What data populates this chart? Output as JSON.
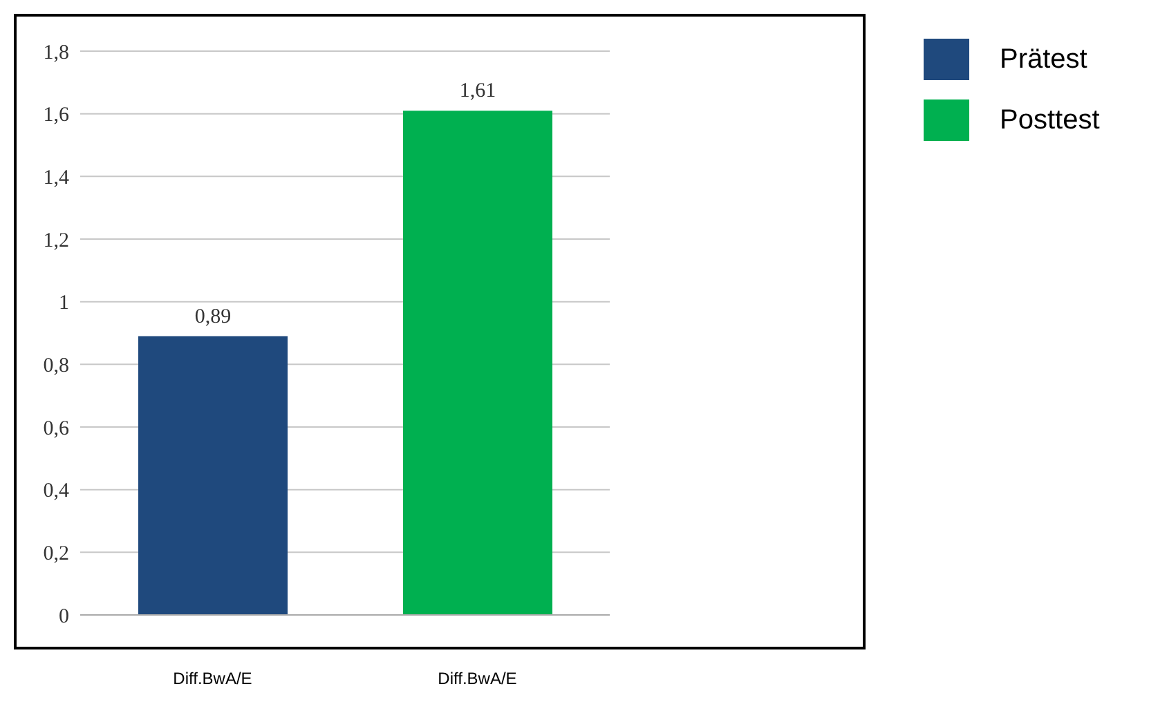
{
  "chart_data": {
    "type": "bar",
    "categories": [
      "Diff.BwA/E",
      "Diff.BwA/E"
    ],
    "series": [
      {
        "name": "Prätest",
        "color": "#1f497d",
        "values": [
          0.89,
          null
        ],
        "value_labels": [
          "0,89",
          null
        ]
      },
      {
        "name": "Posttest",
        "color": "#00b050",
        "values": [
          null,
          1.61
        ],
        "value_labels": [
          null,
          "1,61"
        ]
      }
    ],
    "ylim": [
      0,
      1.8
    ],
    "yticks": [
      0,
      {
        "value": 0.2,
        "label": "0,2"
      },
      {
        "value": 0.4,
        "label": "0,4"
      },
      {
        "value": 0.6,
        "label": "0,6"
      },
      {
        "value": 0.8,
        "label": "0,8"
      },
      1,
      {
        "value": 1.2,
        "label": "1,2"
      },
      {
        "value": 1.4,
        "label": "1,4"
      },
      {
        "value": 1.6,
        "label": "1,6"
      },
      {
        "value": 1.8,
        "label": "1,8"
      }
    ],
    "grid": "y",
    "legend": "right"
  }
}
